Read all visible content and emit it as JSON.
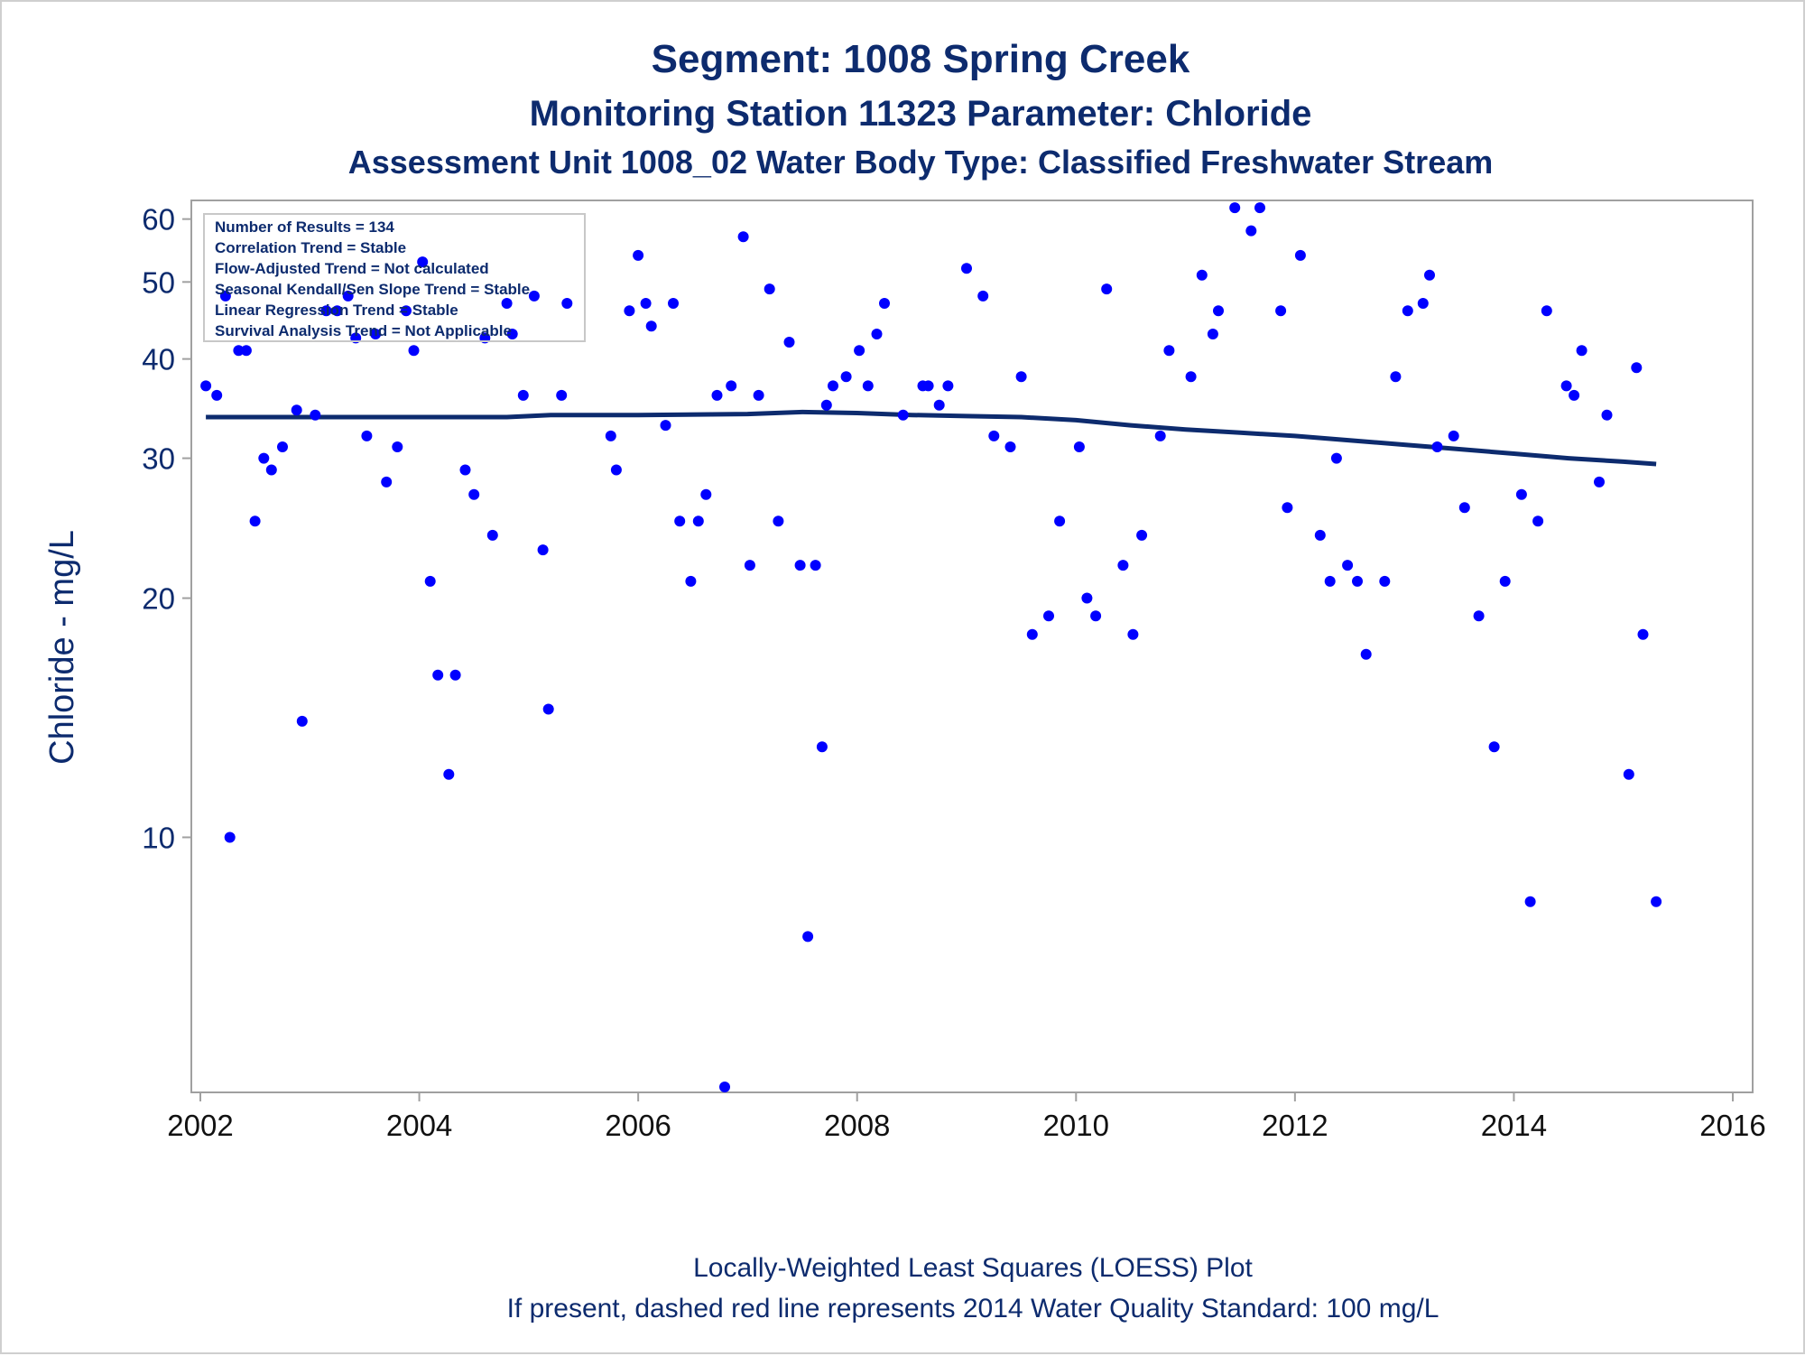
{
  "colors": {
    "text": "#0d2b6e",
    "points": "#0000ff",
    "loess": "#0d2b6e",
    "frame": "#a0a0a0",
    "tick_x": "#111111"
  },
  "chart_data": {
    "type": "scatter",
    "title": "Segment: 1008  Spring Creek",
    "subtitle": "Monitoring Station 11323 Parameter: Chloride",
    "subtitle2": "Assessment Unit 1008_02   Water Body Type: Classified Freshwater Stream",
    "ylabel": "Chloride - mg/L",
    "xlabel": "",
    "y_scale": "log",
    "xlim": [
      2002,
      2016
    ],
    "ylim": [
      4.8,
      63
    ],
    "x_ticks": [
      2002,
      2004,
      2006,
      2008,
      2010,
      2012,
      2014,
      2016
    ],
    "y_ticks": [
      10,
      20,
      30,
      40,
      50,
      60
    ],
    "grid": false,
    "info_box": [
      "Number of Results = 134",
      "Correlation Trend = Stable",
      "Flow-Adjusted Trend = Not calculated",
      "Seasonal Kendall/Sen Slope Trend = Stable",
      "Linear Regression Trend = Stable",
      "Survival Analysis Trend = Not Applicable"
    ],
    "footnotes": [
      "Locally-Weighted Least Squares (LOESS) Plot",
      "If present, dashed red line represents 2014 Water Quality Standard: 100    mg/L"
    ],
    "series": [
      {
        "kind": "points",
        "points": [
          [
            2002.05,
            37
          ],
          [
            2002.15,
            36
          ],
          [
            2002.23,
            48
          ],
          [
            2002.27,
            10
          ],
          [
            2002.35,
            41
          ],
          [
            2002.42,
            41
          ],
          [
            2002.5,
            25
          ],
          [
            2002.58,
            30
          ],
          [
            2002.65,
            29
          ],
          [
            2002.75,
            31
          ],
          [
            2002.88,
            34.5
          ],
          [
            2002.93,
            14
          ],
          [
            2003.05,
            34
          ],
          [
            2003.15,
            46
          ],
          [
            2003.25,
            46
          ],
          [
            2003.35,
            48
          ],
          [
            2003.42,
            42.5
          ],
          [
            2003.52,
            32
          ],
          [
            2003.6,
            43
          ],
          [
            2003.7,
            28
          ],
          [
            2003.8,
            31
          ],
          [
            2003.88,
            46
          ],
          [
            2003.95,
            41
          ],
          [
            2004.03,
            53
          ],
          [
            2004.1,
            21
          ],
          [
            2004.17,
            16
          ],
          [
            2004.27,
            12
          ],
          [
            2004.33,
            16
          ],
          [
            2004.42,
            29
          ],
          [
            2004.5,
            27
          ],
          [
            2004.6,
            42.5
          ],
          [
            2004.67,
            24
          ],
          [
            2004.8,
            47
          ],
          [
            2004.85,
            43
          ],
          [
            2004.95,
            36
          ],
          [
            2005.05,
            48
          ],
          [
            2005.13,
            23
          ],
          [
            2005.18,
            14.5
          ],
          [
            2005.3,
            36
          ],
          [
            2005.35,
            47
          ],
          [
            2005.75,
            32
          ],
          [
            2005.8,
            29
          ],
          [
            2005.92,
            46
          ],
          [
            2006.0,
            54
          ],
          [
            2006.07,
            47
          ],
          [
            2006.12,
            44
          ],
          [
            2006.25,
            33
          ],
          [
            2006.32,
            47
          ],
          [
            2006.38,
            25
          ],
          [
            2006.48,
            21
          ],
          [
            2006.55,
            25
          ],
          [
            2006.62,
            27
          ],
          [
            2006.72,
            36
          ],
          [
            2006.79,
            4.85
          ],
          [
            2006.85,
            37
          ],
          [
            2006.96,
            57
          ],
          [
            2007.02,
            22
          ],
          [
            2007.1,
            36
          ],
          [
            2007.2,
            49
          ],
          [
            2007.28,
            25
          ],
          [
            2007.38,
            42
          ],
          [
            2007.48,
            22
          ],
          [
            2007.55,
            7.5
          ],
          [
            2007.62,
            22
          ],
          [
            2007.68,
            13
          ],
          [
            2007.72,
            35
          ],
          [
            2007.78,
            37
          ],
          [
            2007.9,
            38
          ],
          [
            2008.02,
            41
          ],
          [
            2008.1,
            37
          ],
          [
            2008.18,
            43
          ],
          [
            2008.25,
            47
          ],
          [
            2008.42,
            34
          ],
          [
            2008.6,
            37
          ],
          [
            2008.65,
            37
          ],
          [
            2008.75,
            35
          ],
          [
            2008.83,
            37
          ],
          [
            2009.0,
            52
          ],
          [
            2009.15,
            48
          ],
          [
            2009.25,
            32
          ],
          [
            2009.4,
            31
          ],
          [
            2009.5,
            38
          ],
          [
            2009.6,
            18
          ],
          [
            2009.75,
            19
          ],
          [
            2009.85,
            25
          ],
          [
            2010.03,
            31
          ],
          [
            2010.1,
            20
          ],
          [
            2010.18,
            19
          ],
          [
            2010.28,
            49
          ],
          [
            2010.43,
            22
          ],
          [
            2010.52,
            18
          ],
          [
            2010.6,
            24
          ],
          [
            2010.77,
            32
          ],
          [
            2010.85,
            41
          ],
          [
            2011.05,
            38
          ],
          [
            2011.15,
            51
          ],
          [
            2011.25,
            43
          ],
          [
            2011.3,
            46
          ],
          [
            2011.45,
            62
          ],
          [
            2011.6,
            58
          ],
          [
            2011.68,
            62
          ],
          [
            2011.87,
            46
          ],
          [
            2011.93,
            26
          ],
          [
            2012.05,
            54
          ],
          [
            2012.23,
            24
          ],
          [
            2012.32,
            21
          ],
          [
            2012.38,
            30
          ],
          [
            2012.48,
            22
          ],
          [
            2012.57,
            21
          ],
          [
            2012.65,
            17
          ],
          [
            2012.82,
            21
          ],
          [
            2012.92,
            38
          ],
          [
            2013.03,
            46
          ],
          [
            2013.17,
            47
          ],
          [
            2013.23,
            51
          ],
          [
            2013.3,
            31
          ],
          [
            2013.45,
            32
          ],
          [
            2013.55,
            26
          ],
          [
            2013.68,
            19
          ],
          [
            2013.82,
            13
          ],
          [
            2013.92,
            21
          ],
          [
            2014.07,
            27
          ],
          [
            2014.15,
            8.3
          ],
          [
            2014.22,
            25
          ],
          [
            2014.3,
            46
          ],
          [
            2014.48,
            37
          ],
          [
            2014.55,
            36
          ],
          [
            2014.62,
            41
          ],
          [
            2014.78,
            28
          ],
          [
            2014.85,
            34
          ],
          [
            2015.05,
            12
          ],
          [
            2015.12,
            39
          ],
          [
            2015.18,
            18
          ],
          [
            2015.3,
            8.3
          ]
        ]
      },
      {
        "kind": "loess",
        "points": [
          [
            2002.05,
            33.8
          ],
          [
            2003.0,
            33.8
          ],
          [
            2004.0,
            33.8
          ],
          [
            2004.8,
            33.8
          ],
          [
            2005.2,
            34.0
          ],
          [
            2006.0,
            34.0
          ],
          [
            2007.0,
            34.1
          ],
          [
            2007.5,
            34.3
          ],
          [
            2008.0,
            34.2
          ],
          [
            2008.5,
            34.0
          ],
          [
            2009.0,
            33.9
          ],
          [
            2009.5,
            33.8
          ],
          [
            2010.0,
            33.5
          ],
          [
            2010.5,
            33.0
          ],
          [
            2011.0,
            32.6
          ],
          [
            2011.5,
            32.3
          ],
          [
            2012.0,
            32.0
          ],
          [
            2012.5,
            31.6
          ],
          [
            2013.0,
            31.2
          ],
          [
            2013.5,
            30.8
          ],
          [
            2014.0,
            30.4
          ],
          [
            2014.5,
            30.0
          ],
          [
            2015.0,
            29.7
          ],
          [
            2015.3,
            29.5
          ]
        ]
      }
    ]
  }
}
